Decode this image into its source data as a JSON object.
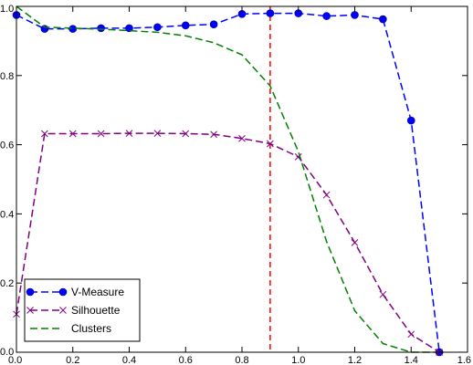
{
  "chart_data": {
    "type": "line",
    "title": "",
    "xlabel": "",
    "ylabel": "",
    "xlim": [
      0.0,
      1.6
    ],
    "ylim": [
      0.0,
      1.0
    ],
    "x_ticks": [
      0.0,
      0.2,
      0.4,
      0.6,
      0.8,
      1.0,
      1.2,
      1.4,
      1.6
    ],
    "x_tick_labels": [
      "0.0",
      "0.2",
      "0.4",
      "0.6",
      "0.8",
      "1.0",
      "1.2",
      "1.4",
      "1.6"
    ],
    "y_ticks": [
      0.0,
      0.2,
      0.4,
      0.6,
      0.8,
      1.0
    ],
    "y_tick_labels": [
      "0.0",
      "0.2",
      "0.4",
      "0.6",
      "0.8",
      "1.0"
    ],
    "grid": false,
    "legend_position": "bottom-left",
    "series": [
      {
        "name": "V-Measure",
        "color": "#0000ff",
        "marker": "circle",
        "line_style": "dashed",
        "x": [
          0.0,
          0.1,
          0.2,
          0.3,
          0.4,
          0.5,
          0.6,
          0.7,
          0.8,
          0.9,
          1.0,
          1.1,
          1.2,
          1.3,
          1.4,
          1.5
        ],
        "y": [
          0.975,
          0.935,
          0.935,
          0.937,
          0.937,
          0.94,
          0.945,
          0.948,
          0.978,
          0.98,
          0.98,
          0.972,
          0.975,
          0.963,
          0.67,
          0.0
        ]
      },
      {
        "name": "Silhouette",
        "color": "#800080",
        "marker": "x",
        "line_style": "dashed",
        "x": [
          0.0,
          0.1,
          0.2,
          0.3,
          0.4,
          0.5,
          0.6,
          0.7,
          0.8,
          0.9,
          1.0,
          1.1,
          1.2,
          1.3,
          1.4,
          1.5
        ],
        "y": [
          0.11,
          0.632,
          0.632,
          0.632,
          0.633,
          0.633,
          0.632,
          0.63,
          0.618,
          0.603,
          0.565,
          0.455,
          0.317,
          0.167,
          0.052,
          0.0
        ]
      },
      {
        "name": "Clusters",
        "color": "#008000",
        "marker": "none",
        "line_style": "dashed",
        "x": [
          0.0,
          0.1,
          0.2,
          0.3,
          0.4,
          0.5,
          0.6,
          0.7,
          0.8,
          0.9,
          1.0,
          1.1,
          1.2,
          1.3,
          1.4,
          1.5
        ],
        "y": [
          1.0,
          0.94,
          0.937,
          0.934,
          0.93,
          0.925,
          0.915,
          0.895,
          0.86,
          0.77,
          0.58,
          0.32,
          0.12,
          0.025,
          0.0,
          0.0
        ]
      }
    ],
    "vertical_line": {
      "x": 0.9,
      "color": "#ff0000",
      "line_style": "dashed"
    }
  }
}
